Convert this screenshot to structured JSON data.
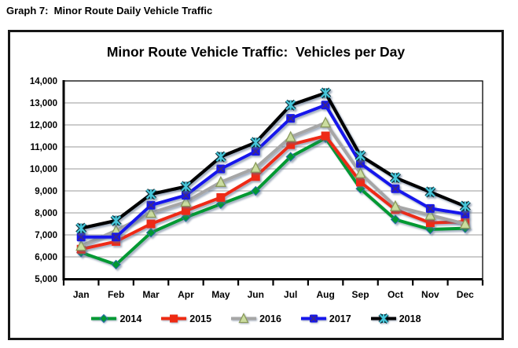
{
  "page": {
    "heading": "Graph 7:  Minor Route Daily Vehicle Traffic"
  },
  "chart": {
    "title": "Minor Route Vehicle Traffic:  Vehicles per Day"
  },
  "chart_data": {
    "type": "line",
    "title": "Minor Route Vehicle Traffic:  Vehicles per Day",
    "categories": [
      "Jan",
      "Feb",
      "Mar",
      "Apr",
      "May",
      "Jun",
      "Jul",
      "Aug",
      "Sep",
      "Oct",
      "Nov",
      "Dec"
    ],
    "series": [
      {
        "name": "2014",
        "color": "#009933",
        "marker": "diamond",
        "values": [
          6200,
          5650,
          7100,
          7800,
          8400,
          9000,
          10550,
          11400,
          9100,
          7700,
          7250,
          7300
        ]
      },
      {
        "name": "2015",
        "color": "#EE2A12",
        "marker": "square",
        "values": [
          6350,
          6700,
          7500,
          8100,
          8700,
          9650,
          11100,
          11500,
          9400,
          8150,
          7550,
          7600
        ]
      },
      {
        "name": "2016",
        "color": "#A6A6A6",
        "marker": "triangle",
        "marker_fill": "#CBDD9F",
        "marker_stroke": "#8A9A5B",
        "values": [
          6500,
          7200,
          8000,
          8500,
          9400,
          10050,
          11450,
          12100,
          9800,
          8300,
          7900,
          7500
        ]
      },
      {
        "name": "2017",
        "color": "#1616EC",
        "marker": "x",
        "values": [
          6900,
          6900,
          8350,
          8800,
          10000,
          10800,
          12300,
          12900,
          10250,
          9100,
          8200,
          7950
        ]
      },
      {
        "name": "2018",
        "color": "#000000",
        "marker": "asterisk",
        "marker_color": "#46C7DA",
        "values": [
          7300,
          7650,
          8850,
          9200,
          10550,
          11200,
          12900,
          13450,
          10600,
          9600,
          8950,
          8300
        ]
      }
    ],
    "ylim": [
      5000,
      14000
    ],
    "ytick_step": 1000,
    "xlabel": "",
    "ylabel": "",
    "grid": true,
    "legend_position": "bottom"
  }
}
